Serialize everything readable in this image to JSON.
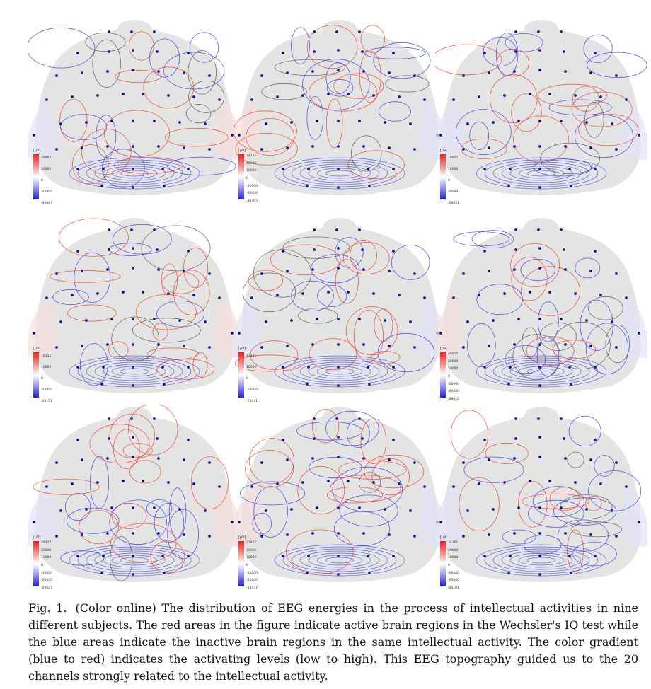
{
  "figure": {
    "caption_label": "Fig. 1.",
    "caption_text": "(Color online) The distribution of EEG energies in the process of intellectual activities in nine different subjects. The red areas in the figure indicate active brain regions in the Wechsler's IQ test while the blue areas indicate the inactive brain regions in the same intellectual activity. The color gradient (blue to red) indicates the activating levels (low to high). This EEG topography guided us to the 20 channels strongly related to the intellectual activity."
  },
  "colors": {
    "positive_contour": "#e8402a",
    "negative_contour": "#3a3ae0",
    "zero_contour": "#555555",
    "electrode": "#1a1a8c",
    "head_fill": "#e4e4e4"
  },
  "panels": [
    {
      "unit": "[µV]",
      "ticks": [
        "49887",
        "20000",
        "0",
        "-20000",
        "-49887"
      ]
    },
    {
      "unit": "[µV]",
      "ticks": [
        "34765",
        "40000",
        "20000",
        "0",
        "-20000",
        "-40000",
        "-34765"
      ]
    },
    {
      "unit": "[µV]",
      "ticks": [
        "19051",
        "10000",
        "0",
        "-10000",
        "-19051"
      ]
    },
    {
      "unit": "[µV]",
      "ticks": [
        "18111",
        "10000",
        "0",
        "-10000",
        "-18151"
      ]
    },
    {
      "unit": "[µV]",
      "ticks": [
        "23441",
        "10000",
        "0",
        "-10000",
        "-23441"
      ]
    },
    {
      "unit": "[µV]",
      "ticks": [
        "28010",
        "20000",
        "10000",
        "0",
        "-10000",
        "-20000",
        "-28010"
      ]
    },
    {
      "unit": "[µV]",
      "ticks": [
        "29427",
        "20000",
        "10000",
        "0",
        "-10000",
        "-20000",
        "-29427"
      ]
    },
    {
      "unit": "[µV]",
      "ticks": [
        "33437",
        "20000",
        "10000",
        "0",
        "-10000",
        "-20000",
        "-33437"
      ]
    },
    {
      "unit": "[µV]",
      "ticks": [
        "34101",
        "20000",
        "10000",
        "0",
        "-10000",
        "-20000",
        "-34101"
      ]
    }
  ]
}
